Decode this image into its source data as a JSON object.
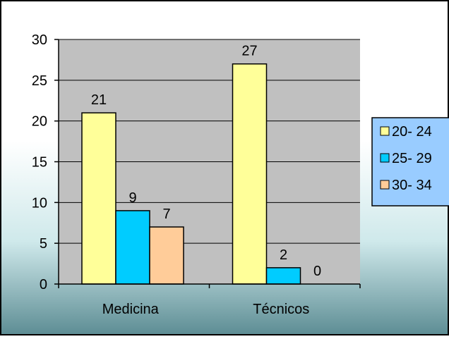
{
  "chart_data": {
    "type": "bar",
    "categories": [
      "Medicina",
      "Técnicos"
    ],
    "series": [
      {
        "name": "20- 24",
        "values": [
          21,
          27
        ],
        "color": "#FFFF99"
      },
      {
        "name": "25- 29",
        "values": [
          9,
          2
        ],
        "color": "#00CCFF"
      },
      {
        "name": "30- 34",
        "values": [
          7,
          0
        ],
        "color": "#FFCC99"
      }
    ],
    "y_ticks": [
      "0",
      "5",
      "10",
      "15",
      "20",
      "25",
      "30"
    ],
    "ylim": [
      0,
      30
    ],
    "grid": true,
    "legend_position": "right",
    "plot_background": "#C0C0C0",
    "legend_background": "#99CCFF"
  }
}
